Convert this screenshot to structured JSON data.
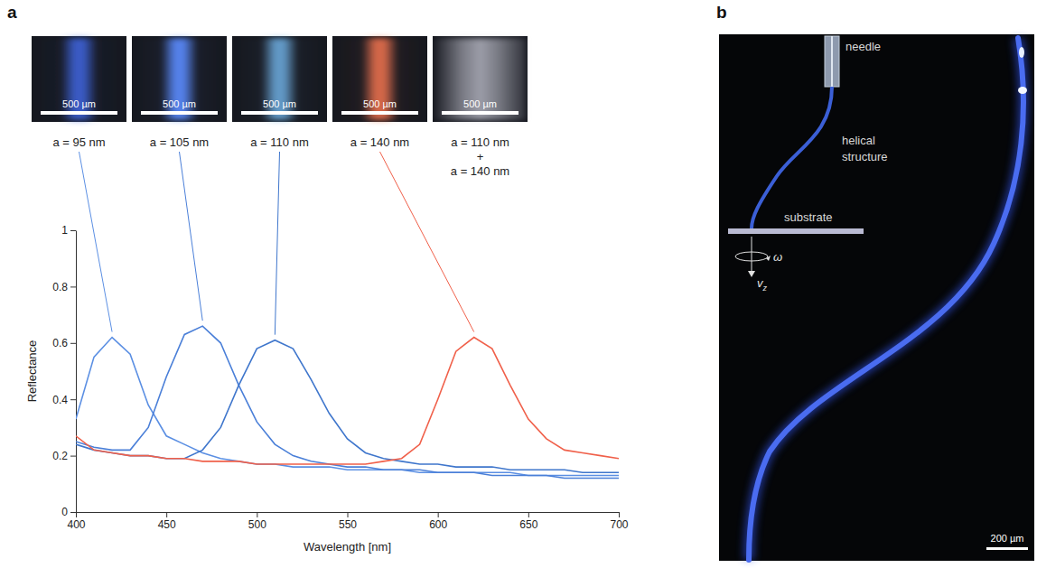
{
  "panel_labels": [
    "a",
    "b"
  ],
  "thumbnails": [
    {
      "scale_bar": "500 µm",
      "color": "#3d62d6"
    },
    {
      "scale_bar": "500 µm",
      "color": "#5b8cff"
    },
    {
      "scale_bar": "500 µm",
      "color": "#6aa6d8"
    },
    {
      "scale_bar": "500 µm",
      "color": "#e8704e"
    },
    {
      "scale_bar": "500 µm",
      "color": "#c9cad6",
      "label": [
        "a = 110 nm",
        "+",
        "a = 140 nm"
      ]
    }
  ],
  "chart_data": {
    "type": "line",
    "x_label": "Wavelength [nm]",
    "y_label": "Reflectance",
    "x": [
      400,
      410,
      420,
      430,
      440,
      450,
      460,
      470,
      480,
      490,
      500,
      510,
      520,
      530,
      540,
      550,
      560,
      570,
      580,
      590,
      600,
      610,
      620,
      630,
      640,
      650,
      660,
      670,
      680,
      690,
      700
    ],
    "xlim": [
      400,
      700
    ],
    "ylim": [
      0,
      1
    ],
    "xticks": [
      400,
      450,
      500,
      550,
      600,
      650,
      700
    ],
    "yticks": [
      0,
      0.2,
      0.4,
      0.6,
      0.8,
      1
    ],
    "series": [
      {
        "name": "a = 95 nm",
        "color": "#5b8fe3",
        "values": [
          0.33,
          0.55,
          0.62,
          0.56,
          0.38,
          0.27,
          0.24,
          0.21,
          0.19,
          0.18,
          0.17,
          0.17,
          0.16,
          0.16,
          0.16,
          0.15,
          0.15,
          0.15,
          0.15,
          0.14,
          0.14,
          0.14,
          0.14,
          0.14,
          0.14,
          0.13,
          0.13,
          0.13,
          0.13,
          0.13,
          0.13
        ]
      },
      {
        "name": "a = 105 nm",
        "color": "#4a7fd8",
        "values": [
          0.25,
          0.23,
          0.22,
          0.22,
          0.3,
          0.48,
          0.63,
          0.66,
          0.6,
          0.45,
          0.32,
          0.24,
          0.2,
          0.18,
          0.17,
          0.16,
          0.16,
          0.15,
          0.15,
          0.15,
          0.14,
          0.14,
          0.14,
          0.13,
          0.13,
          0.13,
          0.13,
          0.12,
          0.12,
          0.12,
          0.12
        ]
      },
      {
        "name": "a = 110 nm",
        "color": "#3f76cc",
        "values": [
          0.24,
          0.22,
          0.21,
          0.2,
          0.2,
          0.19,
          0.19,
          0.22,
          0.3,
          0.45,
          0.58,
          0.61,
          0.58,
          0.47,
          0.35,
          0.26,
          0.21,
          0.19,
          0.18,
          0.17,
          0.17,
          0.16,
          0.16,
          0.16,
          0.15,
          0.15,
          0.15,
          0.15,
          0.14,
          0.14,
          0.14
        ]
      },
      {
        "name": "a = 140 nm",
        "color": "#f0604a",
        "values": [
          0.27,
          0.22,
          0.21,
          0.2,
          0.2,
          0.19,
          0.19,
          0.18,
          0.18,
          0.18,
          0.17,
          0.17,
          0.17,
          0.17,
          0.17,
          0.17,
          0.17,
          0.18,
          0.19,
          0.24,
          0.4,
          0.57,
          0.62,
          0.58,
          0.45,
          0.33,
          0.26,
          0.22,
          0.21,
          0.2,
          0.19
        ]
      }
    ]
  },
  "schematic": {
    "needle": "needle",
    "structure": [
      "helical",
      "structure"
    ],
    "substrate": "substrate",
    "rotation": "ω",
    "velocity": "v",
    "velocity_subscript": "z"
  },
  "photo_scale_bar": "200 µm"
}
